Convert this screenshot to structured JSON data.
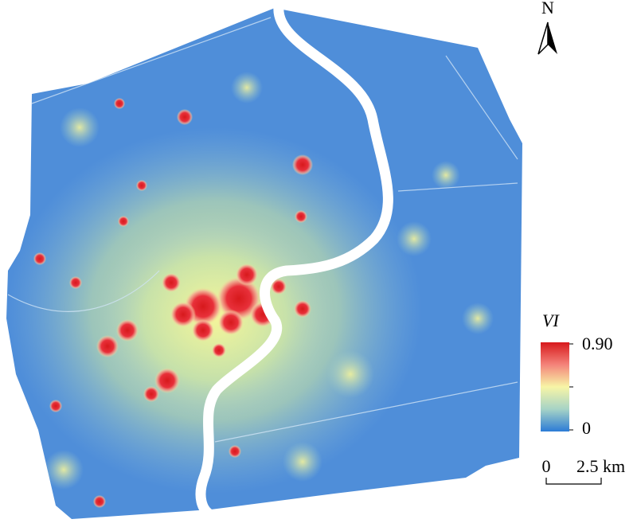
{
  "north_arrow": {
    "label": "N"
  },
  "legend": {
    "title": "VI",
    "max": "0.90",
    "min": "0"
  },
  "scale_bar": {
    "start": "0",
    "end": "2.5 km"
  }
}
